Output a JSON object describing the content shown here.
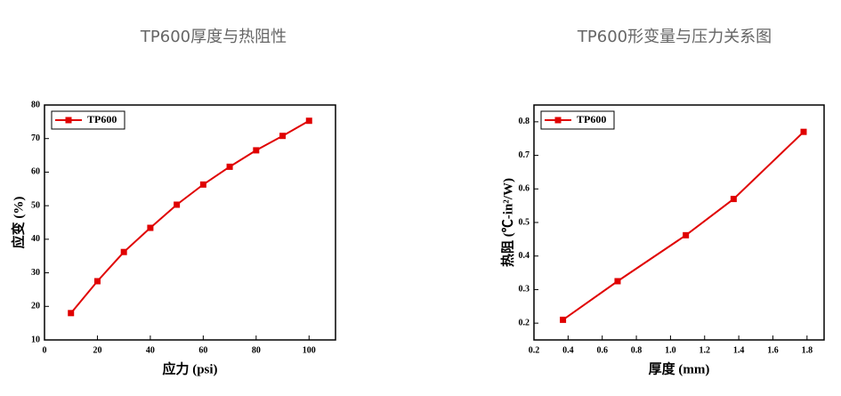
{
  "chart_data": [
    {
      "type": "line",
      "title": "TP600厚度与热阻性",
      "x_label": "应力 (psi)",
      "y_label": "应变 (%)",
      "x": [
        10,
        20,
        30,
        40,
        50,
        60,
        70,
        80,
        90,
        100
      ],
      "series": [
        {
          "name": "TP600",
          "color": "#e00000",
          "values": [
            18,
            27.5,
            36.2,
            43.4,
            50.3,
            56.3,
            61.6,
            66.5,
            70.8,
            75.3
          ]
        }
      ],
      "xlim": [
        0,
        110
      ],
      "xticks": [
        0,
        20,
        40,
        60,
        80,
        100
      ],
      "ylim": [
        10,
        80
      ],
      "yticks": [
        10,
        20,
        30,
        40,
        50,
        60,
        70,
        80
      ],
      "legend": "upper left"
    },
    {
      "type": "line",
      "title": "TP600形变量与压力关系图",
      "x_label": "厚度 (mm)",
      "y_label": "热阻 (℃-in²/W)",
      "x": [
        0.37,
        0.69,
        1.09,
        1.37,
        1.78
      ],
      "series": [
        {
          "name": "TP600",
          "color": "#e00000",
          "values": [
            0.21,
            0.325,
            0.462,
            0.57,
            0.77
          ]
        }
      ],
      "xlim": [
        0.2,
        1.9
      ],
      "xticks": [
        0.2,
        0.4,
        0.6,
        0.8,
        1.0,
        1.2,
        1.4,
        1.6,
        1.8
      ],
      "ylim": [
        0.15,
        0.85
      ],
      "yticks": [
        0.2,
        0.3,
        0.4,
        0.5,
        0.6,
        0.7,
        0.8
      ],
      "legend": "upper left"
    }
  ]
}
